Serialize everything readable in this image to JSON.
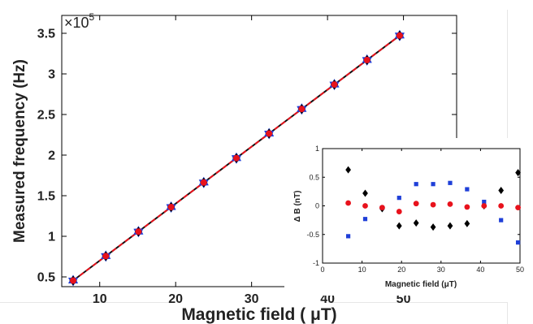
{
  "chart_data": [
    {
      "type": "scatter",
      "xlabel": "Magnetic field ( μT)",
      "ylabel": "Measured frequency (Hz)",
      "y_multiplier": "×10",
      "y_multiplier_exp": "5",
      "xlim": [
        5,
        57
      ],
      "ylim": [
        0.38,
        3.72
      ],
      "xticks": [
        10,
        20,
        30,
        40,
        50
      ],
      "yticks": [
        0.5,
        1,
        1.5,
        2,
        2.5,
        3,
        3.5
      ],
      "ytick_labels": [
        "0.5",
        "1",
        "1.5",
        "2",
        "2.5",
        "3",
        "3.5"
      ],
      "grid": false,
      "x": [
        6.5,
        10.8,
        15.1,
        19.4,
        23.7,
        28.0,
        32.3,
        36.6,
        40.9,
        45.2,
        49.5
      ],
      "y": [
        0.455,
        0.756,
        1.058,
        1.36,
        1.662,
        1.963,
        2.265,
        2.568,
        2.869,
        3.171,
        3.472
      ],
      "series": [
        {
          "name": "",
          "marker": "star",
          "color": "#1f3fd8"
        },
        {
          "name": "",
          "marker": "diamond",
          "color": "#000000"
        },
        {
          "name": "",
          "marker": "circle",
          "color": "#e8121c"
        }
      ],
      "fit_lines": [
        {
          "style": "solid",
          "color": "#111111"
        },
        {
          "style": "dashed",
          "color": "#e8121c"
        }
      ]
    },
    {
      "type": "scatter",
      "xlabel": "Magnetic field (μT)",
      "ylabel": "Δ B (nT)",
      "xlim": [
        0,
        50
      ],
      "ylim": [
        -1,
        1
      ],
      "xticks": [
        0,
        10,
        20,
        30,
        40,
        50
      ],
      "yticks": [
        -1,
        -0.5,
        0,
        0.5,
        1
      ],
      "ytick_labels": [
        "-1",
        "-0.5",
        "0",
        "0.5",
        "1"
      ],
      "grid": false,
      "x": [
        6.5,
        10.8,
        15.1,
        19.4,
        23.7,
        28.0,
        32.3,
        36.6,
        40.9,
        45.2,
        49.5
      ],
      "series": [
        {
          "name": "",
          "marker": "diamond",
          "color": "#000000",
          "values": [
            0.63,
            0.22,
            -0.05,
            -0.35,
            -0.3,
            -0.37,
            -0.35,
            -0.31,
            0.0,
            0.27,
            0.58
          ]
        },
        {
          "name": "",
          "marker": "square",
          "color": "#1f3fd8",
          "values": [
            -0.53,
            -0.23,
            -0.03,
            0.14,
            0.38,
            0.38,
            0.4,
            0.29,
            0.07,
            -0.25,
            -0.64
          ]
        },
        {
          "name": "",
          "marker": "circle",
          "color": "#e8121c",
          "values": [
            0.05,
            0.0,
            -0.03,
            -0.1,
            0.04,
            0.02,
            0.03,
            -0.02,
            0.0,
            0.0,
            -0.03
          ]
        }
      ]
    }
  ]
}
